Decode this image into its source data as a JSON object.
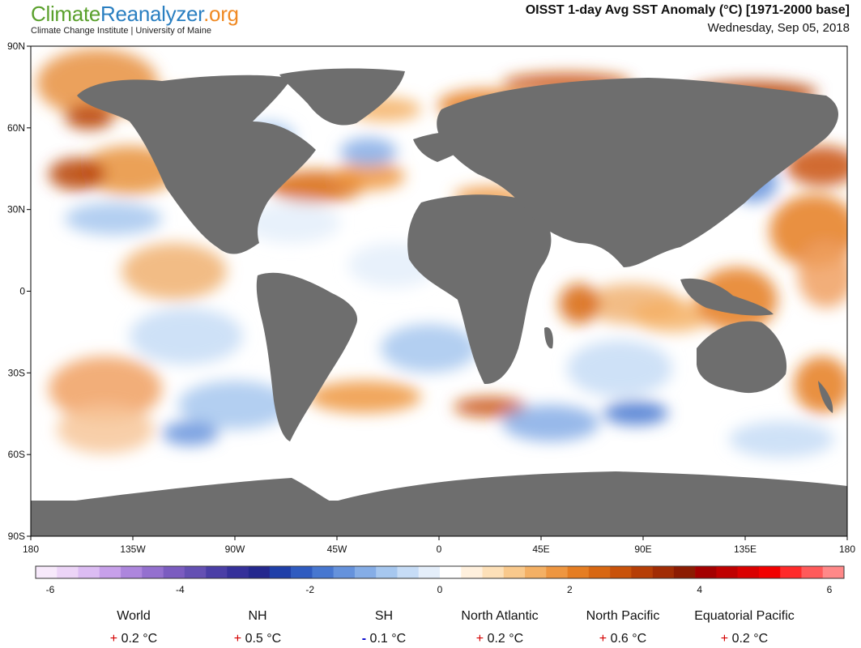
{
  "header": {
    "logo_part1": "Climate",
    "logo_part2": "Reanalyzer",
    "logo_part3": ".org",
    "subtitle": "Climate Change Institute | University of Maine",
    "title": "OISST 1-day Avg SST Anomaly (°C) [1971-2000 base]",
    "date": "Wednesday, Sep 05, 2018"
  },
  "map": {
    "lat_labels": [
      "90N",
      "60N",
      "30N",
      "0",
      "30S",
      "60S",
      "90S"
    ],
    "lon_labels": [
      "180",
      "135W",
      "90W",
      "45W",
      "0",
      "45E",
      "90E",
      "135E",
      "180"
    ],
    "colors": {
      "land": "#6e6e6e",
      "ice": "#ffffff",
      "neutral": "#ffffff"
    }
  },
  "colorbar": {
    "tick_labels": [
      "-6",
      "-4",
      "-2",
      "0",
      "2",
      "4",
      "6"
    ],
    "range": [
      -6,
      6
    ],
    "colors": [
      "#f7e9fb",
      "#ecd4f7",
      "#dcbcf3",
      "#c7a0ea",
      "#ad86dd",
      "#9470cf",
      "#7b5cc0",
      "#6450b3",
      "#4a3ea6",
      "#35309a",
      "#24288e",
      "#1f3fa8",
      "#2f5bc0",
      "#4777d0",
      "#6592dc",
      "#85ade6",
      "#a6c7ef",
      "#c6dcf6",
      "#e4eefa",
      "#ffffff",
      "#fff0dd",
      "#fde0b8",
      "#f9c98c",
      "#f4b064",
      "#ee9640",
      "#e57d22",
      "#d86712",
      "#c9520a",
      "#b63e06",
      "#a12c04",
      "#8c1b02",
      "#a40000",
      "#bf0000",
      "#da0000",
      "#f20000",
      "#ff2a2a",
      "#ff5a5a",
      "#ff8888"
    ]
  },
  "stats": [
    {
      "name": "World",
      "sign": "+",
      "value": "0.2 °C"
    },
    {
      "name": "NH",
      "sign": "+",
      "value": "0.5 °C"
    },
    {
      "name": "SH",
      "sign": "-",
      "value": "0.1 °C"
    },
    {
      "name": "North Atlantic",
      "sign": "+",
      "value": "0.2 °C"
    },
    {
      "name": "North Pacific",
      "sign": "+",
      "value": "0.6 °C"
    },
    {
      "name": "Equatorial Pacific",
      "sign": "+",
      "value": "0.2 °C"
    }
  ]
}
